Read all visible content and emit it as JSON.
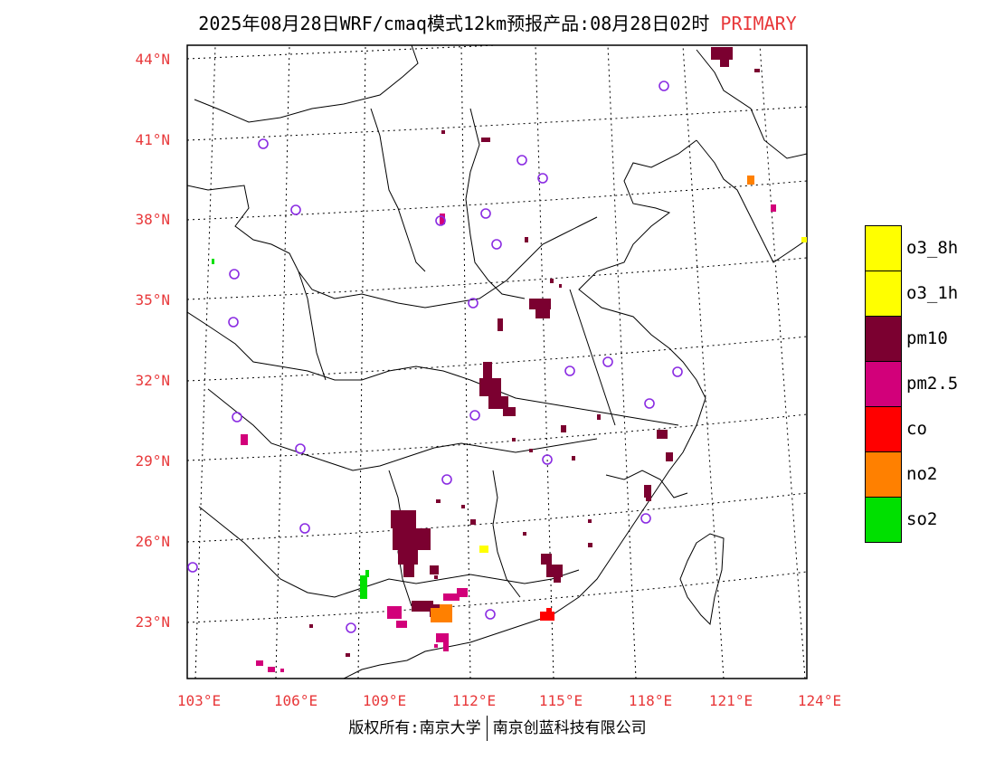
{
  "title": {
    "main": "2025年08月28日WRF/cmaq模式12km预报产品:08月28日02时",
    "tag": "PRIMARY"
  },
  "colors": {
    "o3_8h": "#ffff00",
    "o3_1h": "#ffff00",
    "pm10": "#7b0030",
    "pm25": "#d2007a",
    "co": "#ff0000",
    "no2": "#ff8000",
    "so2": "#00e000",
    "station": "#8a2be2",
    "label_red": "#e8383a"
  },
  "axes": {
    "lat_labels": [
      "44°N",
      "41°N",
      "38°N",
      "35°N",
      "32°N",
      "29°N",
      "26°N",
      "23°N"
    ],
    "lon_labels": [
      "103°E",
      "106°E",
      "109°E",
      "112°E",
      "115°E",
      "118°E",
      "121°E",
      "124°E"
    ]
  },
  "legend": [
    {
      "key": "o3_8h",
      "label": "o3_8h"
    },
    {
      "key": "o3_1h",
      "label": "o3_1h"
    },
    {
      "key": "pm10",
      "label": "pm10"
    },
    {
      "key": "pm25",
      "label": "pm2.5"
    },
    {
      "key": "co",
      "label": "co"
    },
    {
      "key": "no2",
      "label": "no2"
    },
    {
      "key": "so2",
      "label": "so2"
    }
  ],
  "footer": {
    "left": "版权所有:南京大学",
    "right": "南京创蓝科技有限公司"
  }
}
